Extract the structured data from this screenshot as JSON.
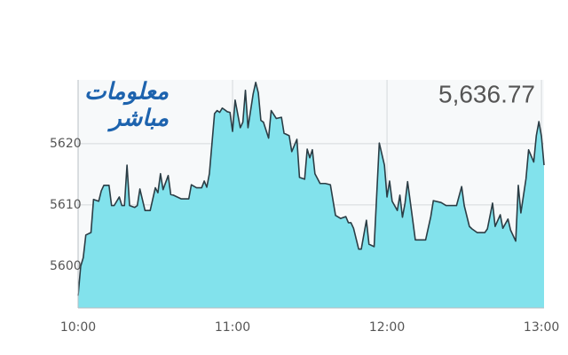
{
  "logo": {
    "line1": "معلومات",
    "line2": "مباشر"
  },
  "chart_data": {
    "type": "area",
    "title": "5,636.77",
    "x": [
      "10:00",
      "10:01",
      "10:02",
      "10:03",
      "10:05",
      "10:06",
      "10:08",
      "10:09",
      "10:10",
      "10:12",
      "10:13",
      "10:14",
      "10:16",
      "10:17",
      "10:18",
      "10:19",
      "10:20",
      "10:22",
      "10:23",
      "10:24",
      "10:26",
      "10:28",
      "10:30",
      "10:31",
      "10:32",
      "10:33",
      "10:35",
      "10:36",
      "10:37",
      "10:40",
      "10:43",
      "10:44",
      "10:46",
      "10:48",
      "10:49",
      "10:50",
      "10:51",
      "10:53",
      "10:54",
      "10:55",
      "10:56",
      "10:58",
      "10:59",
      "11:00",
      "11:01",
      "11:03",
      "11:04",
      "11:05",
      "11:06",
      "11:08",
      "11:09",
      "11:10",
      "11:11",
      "11:12",
      "11:14",
      "11:15",
      "11:17",
      "11:19",
      "11:20",
      "11:22",
      "11:23",
      "11:25",
      "11:26",
      "11:28",
      "11:29",
      "11:30",
      "11:31",
      "11:32",
      "11:34",
      "11:36",
      "11:38",
      "11:40",
      "11:42",
      "11:44",
      "11:45",
      "11:46",
      "11:47",
      "11:49",
      "11:50",
      "11:52",
      "11:53",
      "11:55",
      "11:57",
      "11:59",
      "12:00",
      "12:01",
      "12:02",
      "12:04",
      "12:05",
      "12:06",
      "12:07",
      "12:08",
      "12:10",
      "12:11",
      "12:15",
      "12:17",
      "12:18",
      "12:21",
      "12:23",
      "12:27",
      "12:29",
      "12:30",
      "12:32",
      "12:33",
      "12:35",
      "12:38",
      "12:39",
      "12:41",
      "12:42",
      "12:44",
      "12:45",
      "12:47",
      "12:48",
      "12:50",
      "12:51",
      "12:52",
      "12:54",
      "12:55",
      "12:57",
      "12:58",
      "12:59",
      "13:00",
      "13:01"
    ],
    "series": [
      {
        "color": "#2b3d45",
        "fill": "#82e2ec",
        "values": [
          5595.2,
          5600,
          5601.4,
          5605.1,
          5605.5,
          5610.9,
          5610.6,
          5612.3,
          5613.2,
          5613.2,
          5609.9,
          5609.9,
          5611.3,
          5609.9,
          5609.9,
          5616.5,
          5609.9,
          5609.6,
          5609.9,
          5612.6,
          5609.1,
          5609.1,
          5612.8,
          5612,
          5615.1,
          5612.5,
          5614.8,
          5611.7,
          5611.6,
          5611,
          5611,
          5613.3,
          5612.8,
          5612.8,
          5613.9,
          5612.9,
          5615.1,
          5624.9,
          5625.4,
          5625.1,
          5625.8,
          5625.2,
          5625.1,
          5622,
          5627.1,
          5622.6,
          5623.5,
          5628.7,
          5622.6,
          5628.1,
          5630,
          5628.3,
          5623.8,
          5623.5,
          5620.9,
          5625.4,
          5624.1,
          5624.3,
          5621.7,
          5621.3,
          5618.7,
          5620.7,
          5614.5,
          5614.2,
          5619.1,
          5617.7,
          5619,
          5615.1,
          5613.5,
          5613.5,
          5613.3,
          5608.3,
          5607.8,
          5608.1,
          5607.1,
          5607.1,
          5606.2,
          5602.8,
          5602.8,
          5607.5,
          5603.6,
          5603.2,
          5620.1,
          5616.5,
          5611.3,
          5613.9,
          5610.6,
          5609.1,
          5611.6,
          5608,
          5610.3,
          5613.8,
          5607.5,
          5604.3,
          5604.3,
          5608.1,
          5610.7,
          5610.4,
          5609.9,
          5609.9,
          5613,
          5609.9,
          5606.5,
          5606.1,
          5605.5,
          5605.5,
          5606.1,
          5610.3,
          5606.5,
          5608.4,
          5606.2,
          5607.7,
          5605.9,
          5604.1,
          5613.2,
          5608.7,
          5614.3,
          5619,
          5617,
          5621.3,
          5623.6,
          5621.2,
          5616.5
        ]
      }
    ],
    "xlim": [
      "10:00",
      "13:01"
    ],
    "xticks": [
      "10:00",
      "11:00",
      "12:00",
      "13:00"
    ],
    "ylim": [
      5593.2,
      5630.4
    ],
    "yticks": [
      5600,
      5610,
      5620
    ],
    "grid": true
  }
}
